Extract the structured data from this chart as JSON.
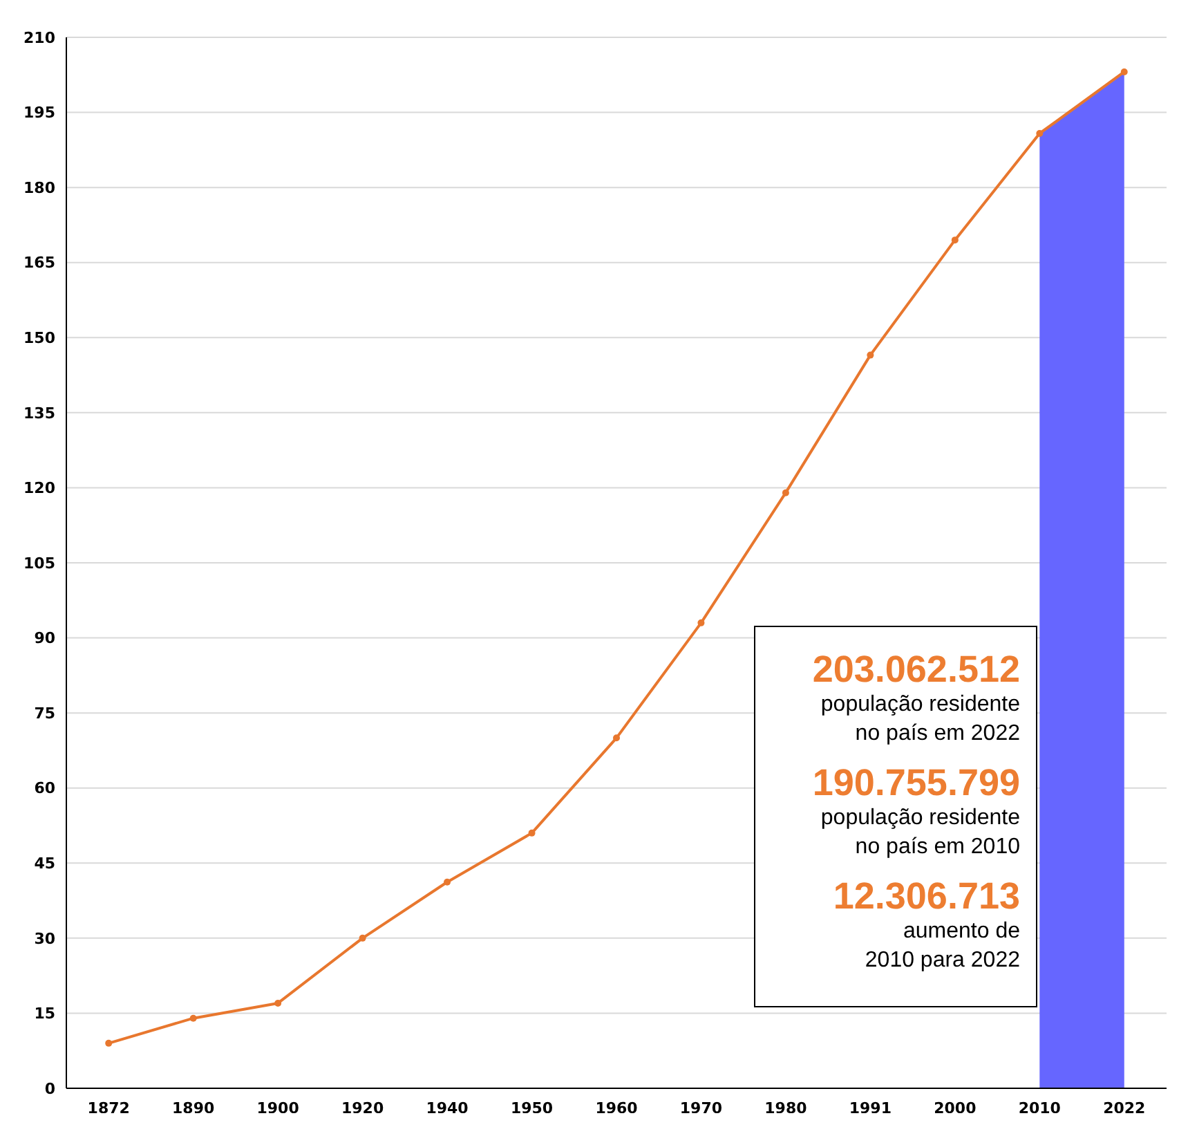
{
  "chart_data": {
    "type": "line",
    "categories": [
      "1872",
      "1890",
      "1900",
      "1920",
      "1940",
      "1950",
      "1960",
      "1970",
      "1980",
      "1991",
      "2000",
      "2010",
      "2022"
    ],
    "series": [
      {
        "type": "area",
        "marker": "none",
        "color": "#6666ff",
        "values": [
          null,
          null,
          null,
          null,
          null,
          null,
          null,
          null,
          null,
          null,
          null,
          190.8,
          203.1
        ]
      },
      {
        "color": "#e8772e",
        "values": [
          9,
          14,
          17,
          30,
          41.2,
          51,
          70,
          93,
          119,
          146.5,
          169.5,
          190.8,
          203.1
        ]
      }
    ],
    "ylim": [
      0,
      210
    ],
    "yticks": [
      0,
      15,
      30,
      45,
      60,
      75,
      90,
      105,
      120,
      135,
      150,
      165,
      180,
      195,
      210
    ],
    "grid": "y",
    "marker": "circle",
    "line_style": "solid",
    "annotations": [
      "203.062.512",
      "população residente",
      "no país em 2022",
      "190.755.799",
      "população residente",
      "no país em 2010",
      "12.306.713",
      "aumento de",
      "2010 para 2022"
    ]
  }
}
